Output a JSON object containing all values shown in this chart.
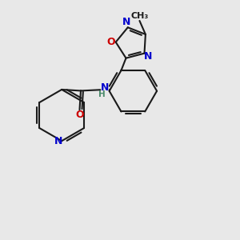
{
  "bg_color": "#e8e8e8",
  "bond_color": "#1a1a1a",
  "N_color": "#0000cc",
  "O_color": "#cc0000",
  "H_color": "#4a8a6a",
  "lw": 1.5,
  "figsize": [
    3.0,
    3.0
  ],
  "dpi": 100,
  "xlim": [
    0,
    10
  ],
  "ylim": [
    0,
    10
  ]
}
